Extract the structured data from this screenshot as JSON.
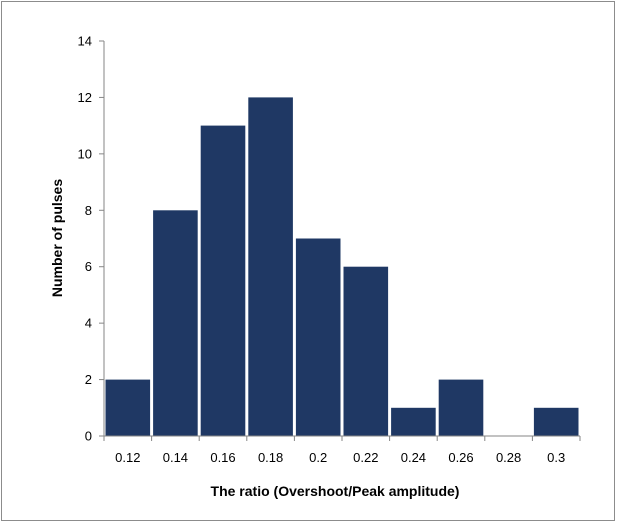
{
  "chart_data": {
    "type": "bar",
    "title": "",
    "xlabel": "The ratio (Overshoot/Peak amplitude)",
    "ylabel": "Number of pulses",
    "categories": [
      "0.12",
      "0.14",
      "0.16",
      "0.18",
      "0.2",
      "0.22",
      "0.24",
      "0.26",
      "0.28",
      "0.3"
    ],
    "values": [
      2,
      8,
      11,
      12,
      7,
      6,
      1,
      2,
      0,
      1
    ],
    "ylim": [
      0,
      14
    ],
    "yticks": [
      0,
      2,
      4,
      6,
      8,
      10,
      12,
      14
    ],
    "grid": false,
    "legend": "none",
    "bar_color": "#1f3864",
    "axis_color": "#868686"
  }
}
